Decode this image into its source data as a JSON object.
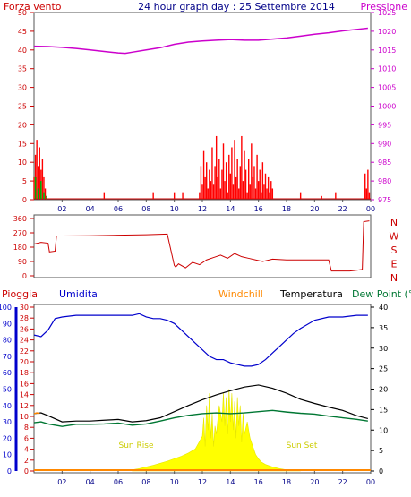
{
  "colors": {
    "wind": "#cc0000",
    "gust": "#ff0000",
    "pressure": "#cc00cc",
    "direction": "#cc0000",
    "humidity": "#0000cc",
    "temperature": "#000000",
    "dewpoint": "#007733",
    "windchill": "#ff8800",
    "rain": "#cc0000",
    "solar": "#ffff00",
    "frame": "#555555",
    "title": "#000088"
  },
  "chart_data": [
    {
      "type": "line",
      "title": "24 hour graph day : 25 Settembre 2014",
      "left_label": "Forza vento",
      "right_label": "Pressione",
      "x_ticks": [
        "02",
        "04",
        "06",
        "08",
        "10",
        "12",
        "14",
        "16",
        "18",
        "20",
        "22",
        "00"
      ],
      "y_left_ticks": [
        "0",
        "5",
        "10",
        "15",
        "20",
        "25",
        "30",
        "35",
        "40",
        "45",
        "50"
      ],
      "y_left_range": [
        0,
        50
      ],
      "y_right_ticks": [
        "975",
        "980",
        "985",
        "990",
        "995",
        "1000",
        "1005",
        "1010",
        "1015",
        "1020",
        "1025"
      ],
      "y_right_range": [
        975,
        1025
      ],
      "series": [
        {
          "name": "Pressione",
          "x": [
            0,
            1,
            2,
            3,
            4,
            5,
            6,
            6.5,
            7,
            8,
            9,
            10,
            11,
            12,
            13,
            14,
            15,
            16,
            17,
            18,
            19,
            20,
            21,
            22,
            23,
            23.8
          ],
          "values": [
            1016.0,
            1015.9,
            1015.7,
            1015.4,
            1015.0,
            1014.6,
            1014.2,
            1014.1,
            1014.4,
            1015.0,
            1015.6,
            1016.5,
            1017.1,
            1017.4,
            1017.6,
            1017.8,
            1017.6,
            1017.6,
            1017.9,
            1018.2,
            1018.7,
            1019.2,
            1019.6,
            1020.1,
            1020.5,
            1020.8
          ]
        },
        {
          "name": "Forza vento",
          "x": [
            0,
            0.1,
            0.2,
            0.3,
            0.4,
            0.5,
            0.6,
            0.7,
            0.8,
            0.9,
            1.0,
            1.1,
            1.2,
            1.5,
            4.8,
            5.0,
            5.2,
            8.5,
            10.0,
            10.6,
            11.8,
            11.9,
            12.0,
            12.1,
            12.2,
            12.3,
            12.4,
            12.5,
            12.6,
            12.7,
            12.8,
            12.9,
            13.0,
            13.1,
            13.2,
            13.3,
            13.4,
            13.5,
            13.6,
            13.7,
            13.8,
            13.9,
            14.0,
            14.1,
            14.2,
            14.3,
            14.4,
            14.5,
            14.6,
            14.7,
            14.8,
            14.9,
            15.0,
            15.1,
            15.2,
            15.3,
            15.4,
            15.5,
            15.6,
            15.7,
            15.8,
            15.9,
            16.0,
            16.1,
            16.2,
            16.3,
            16.4,
            16.5,
            16.6,
            16.7,
            16.8,
            16.9,
            17.0,
            17.2,
            19.0,
            20.5,
            21.5,
            22.6,
            23.6,
            23.7,
            23.8,
            23.9
          ],
          "values": [
            6,
            12,
            16,
            9,
            14,
            8,
            11,
            6,
            3,
            1,
            0,
            0,
            0,
            0,
            0,
            2,
            0,
            2,
            2,
            2,
            2,
            9,
            4,
            13,
            6,
            10,
            3,
            8,
            5,
            14,
            4,
            9,
            17,
            6,
            11,
            3,
            8,
            15,
            5,
            10,
            2,
            12,
            7,
            14,
            4,
            16,
            6,
            11,
            3,
            9,
            17,
            5,
            13,
            8,
            2,
            11,
            4,
            15,
            6,
            9,
            3,
            12,
            5,
            8,
            2,
            10,
            4,
            7,
            3,
            6,
            2,
            5,
            3,
            0,
            2,
            1,
            2,
            0,
            7,
            3,
            8,
            2
          ]
        },
        {
          "name": "Raffica",
          "x": [
            0.1,
            0.3,
            0.5,
            0.7,
            0.9
          ],
          "values": [
            6,
            3,
            5,
            2,
            1
          ]
        }
      ]
    },
    {
      "type": "line",
      "title": "",
      "y_ticks": [
        "0",
        "90",
        "180",
        "270",
        "360"
      ],
      "y_range": [
        0,
        360
      ],
      "y_right_labels": [
        "N",
        "W",
        "S",
        "E",
        "N"
      ],
      "series": [
        {
          "x": [
            0,
            0.5,
            1.0,
            1.1,
            1.5,
            1.6,
            2.0,
            4,
            6,
            8,
            9.5,
            10.0,
            10.1,
            10.3,
            10.8,
            11.3,
            11.8,
            12.3,
            12.8,
            13.3,
            13.8,
            14.3,
            14.8,
            15.3,
            15.8,
            16.3,
            17.0,
            18.0,
            19.0,
            20.0,
            21.0,
            21.2,
            22.0,
            22.5,
            23.0,
            23.4,
            23.5,
            23.9
          ],
          "values": [
            200,
            210,
            205,
            150,
            155,
            250,
            250,
            252,
            255,
            258,
            262,
            65,
            55,
            75,
            50,
            85,
            70,
            100,
            115,
            130,
            110,
            140,
            120,
            110,
            100,
            90,
            105,
            100,
            100,
            100,
            100,
            30,
            30,
            30,
            35,
            40,
            340,
            345
          ]
        }
      ]
    },
    {
      "type": "line",
      "title": "",
      "legend": [
        "Pioggia",
        "Umidita",
        "Windchill",
        "Temperatura",
        "Dew Point (°C"
      ],
      "left_label_outer": "Pioggia",
      "y_rain_ticks": [
        "0",
        "2",
        "4",
        "6",
        "8",
        "10",
        "12",
        "14",
        "16",
        "18",
        "20",
        "22",
        "24",
        "26",
        "28",
        "30"
      ],
      "y_hum_ticks": [
        "0",
        "10",
        "20",
        "30",
        "40",
        "50",
        "60",
        "70",
        "80",
        "90",
        "100"
      ],
      "y_hum_range": [
        0,
        100
      ],
      "y_temp_ticks": [
        "0",
        "5",
        "10",
        "15",
        "20",
        "25",
        "30",
        "35",
        "40"
      ],
      "y_temp_range": [
        0,
        40
      ],
      "annotations": [
        "Sun Rise",
        "Sun Set"
      ],
      "series": [
        {
          "name": "Umidita",
          "x": [
            0,
            0.5,
            1.0,
            1.5,
            2,
            3,
            4,
            5,
            6,
            7,
            7.5,
            8,
            8.5,
            9,
            9.5,
            10,
            10.5,
            11,
            11.5,
            12,
            12.5,
            13,
            13.5,
            14,
            14.5,
            15,
            15.5,
            16,
            16.5,
            17,
            17.5,
            18,
            18.5,
            19,
            20,
            21,
            22,
            23,
            23.8
          ],
          "values": [
            83,
            82,
            86,
            93,
            94,
            95,
            95,
            95,
            95,
            95,
            96,
            94,
            93,
            93,
            92,
            90,
            86,
            82,
            78,
            74,
            70,
            68,
            68,
            66,
            65,
            64,
            64,
            65,
            68,
            72,
            76,
            80,
            84,
            87,
            92,
            94,
            94,
            95,
            95
          ]
        },
        {
          "name": "Temperatura",
          "x": [
            0,
            0.5,
            1.0,
            2,
            3,
            4,
            5,
            6,
            7,
            8,
            9,
            10,
            11,
            12,
            13,
            14,
            15,
            16,
            17,
            18,
            19,
            20,
            21,
            22,
            23,
            23.8
          ],
          "values": [
            14.0,
            14.2,
            13.5,
            12.0,
            12.2,
            12.2,
            12.4,
            12.6,
            12.0,
            12.3,
            13.0,
            14.5,
            16.0,
            17.4,
            18.6,
            19.6,
            20.5,
            21.0,
            20.2,
            19.0,
            17.5,
            16.5,
            15.6,
            14.8,
            13.5,
            12.8
          ]
        },
        {
          "name": "Dew Point (°C",
          "x": [
            0,
            0.5,
            1.0,
            2,
            3,
            4,
            5,
            6,
            7,
            8,
            9,
            10,
            11,
            12,
            13,
            14,
            15,
            16,
            17,
            18,
            19,
            20,
            21,
            22,
            23,
            23.8
          ],
          "values": [
            11.8,
            12.0,
            11.5,
            10.9,
            11.4,
            11.4,
            11.5,
            11.7,
            11.2,
            11.5,
            12.2,
            13.0,
            13.6,
            14.0,
            14.2,
            14.0,
            14.2,
            14.5,
            14.8,
            14.4,
            14.1,
            13.9,
            13.4,
            13.0,
            12.6,
            12.2
          ]
        },
        {
          "name": "Windchill",
          "x": [
            0,
            0.2,
            0.4
          ],
          "values": [
            14.0,
            14.2,
            14.0
          ]
        },
        {
          "name": "Solar",
          "x": [
            7.0,
            7.5,
            8.0,
            8.5,
            9.0,
            9.5,
            10.0,
            10.5,
            11.0,
            11.5,
            12.0,
            12.1,
            12.2,
            12.3,
            12.4,
            12.5,
            12.6,
            12.7,
            12.8,
            12.9,
            13.0,
            13.2,
            13.4,
            13.5,
            13.6,
            13.7,
            13.8,
            13.9,
            14.0,
            14.1,
            14.2,
            14.3,
            14.4,
            14.5,
            14.6,
            14.7,
            14.8,
            14.9,
            15.0,
            15.2,
            15.4,
            15.6,
            15.8,
            16.0,
            16.2,
            16.5,
            17.0,
            17.5,
            18.0,
            18.5,
            19.0
          ],
          "values": [
            0.3,
            0.6,
            1.0,
            1.4,
            1.9,
            2.4,
            3.0,
            3.6,
            4.4,
            5.4,
            8.5,
            13,
            6,
            16,
            10,
            19,
            8,
            14,
            6,
            11,
            9,
            16,
            12,
            19,
            11,
            18,
            9,
            20,
            12,
            19,
            10,
            17,
            8,
            18,
            11,
            16,
            7,
            14,
            9,
            12,
            8,
            6,
            4,
            3,
            2.2,
            1.6,
            1.0,
            0.6,
            0.3,
            0.1,
            0
          ]
        }
      ]
    }
  ]
}
